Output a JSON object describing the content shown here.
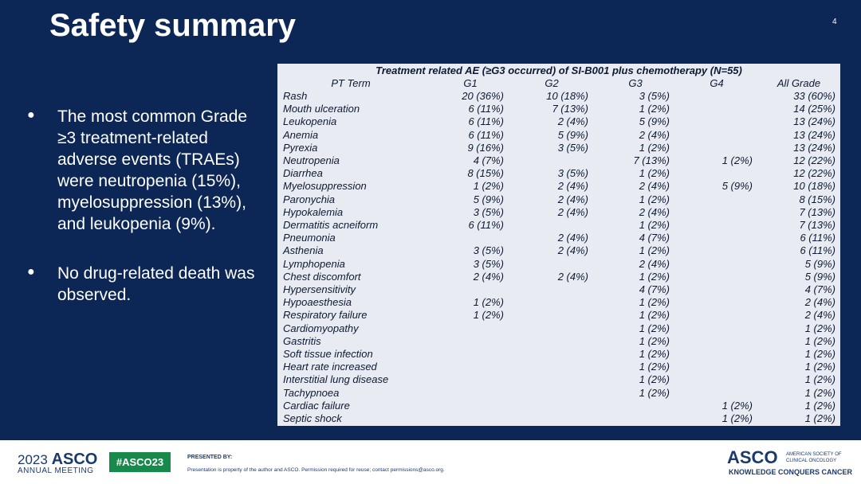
{
  "header": {
    "title": "Safety summary",
    "slide_number": "4"
  },
  "bullets": [
    "The most common Grade ≥3 treatment-related adverse events (TRAEs) were neutropenia (15%), myelosuppression (13%), and leukopenia (9%).",
    "No drug-related death was observed."
  ],
  "table": {
    "caption": "Treatment related AE (≥G3 occurred) of SI-B001 plus chemotherapy  (N=55)",
    "columns": [
      "PT Term",
      "G1",
      "G2",
      "G3",
      "G4",
      "All Grade"
    ],
    "rows": [
      [
        "Rash",
        "20 (36%)",
        "10 (18%)",
        "3 (5%)",
        null,
        "33 (60%)"
      ],
      [
        "Mouth ulceration",
        "6 (11%)",
        "7 (13%)",
        "1 (2%)",
        null,
        "14 (25%)"
      ],
      [
        "Leukopenia",
        "6 (11%)",
        "2 (4%)",
        "5 (9%)",
        null,
        "13 (24%)"
      ],
      [
        "Anemia",
        "6 (11%)",
        "5 (9%)",
        "2 (4%)",
        null,
        "13 (24%)"
      ],
      [
        "Pyrexia",
        "9 (16%)",
        "3 (5%)",
        "1 (2%)",
        null,
        "13 (24%)"
      ],
      [
        "Neutropenia",
        "4 (7%)",
        null,
        "7 (13%)",
        "1 (2%)",
        "12 (22%)"
      ],
      [
        "Diarrhea",
        "8 (15%)",
        "3 (5%)",
        "1 (2%)",
        null,
        "12 (22%)"
      ],
      [
        "Myelosuppression",
        "1 (2%)",
        "2 (4%)",
        "2 (4%)",
        "5 (9%)",
        "10 (18%)"
      ],
      [
        "Paronychia",
        "5 (9%)",
        "2 (4%)",
        "1 (2%)",
        null,
        "8 (15%)"
      ],
      [
        "Hypokalemia",
        "3 (5%)",
        "2 (4%)",
        "2 (4%)",
        null,
        "7 (13%)"
      ],
      [
        "Dermatitis acneiform",
        "6 (11%)",
        null,
        "1 (2%)",
        null,
        "7 (13%)"
      ],
      [
        "Pneumonia",
        null,
        "2 (4%)",
        "4 (7%)",
        null,
        "6 (11%)"
      ],
      [
        "Asthenia",
        "3 (5%)",
        "2 (4%)",
        "1 (2%)",
        null,
        "6 (11%)"
      ],
      [
        "Lymphopenia",
        "3 (5%)",
        null,
        "2 (4%)",
        null,
        "5 (9%)"
      ],
      [
        "Chest discomfort",
        "2 (4%)",
        "2 (4%)",
        "1 (2%)",
        null,
        "5 (9%)"
      ],
      [
        "Hypersensitivity",
        null,
        null,
        "4 (7%)",
        null,
        "4 (7%)"
      ],
      [
        "Hypoaesthesia",
        "1 (2%)",
        null,
        "1 (2%)",
        null,
        "2 (4%)"
      ],
      [
        "Respiratory failure",
        "1 (2%)",
        null,
        "1 (2%)",
        null,
        "2 (4%)"
      ],
      [
        "Cardiomyopathy",
        null,
        null,
        "1 (2%)",
        null,
        "1 (2%)"
      ],
      [
        "Gastritis",
        null,
        null,
        "1 (2%)",
        null,
        "1 (2%)"
      ],
      [
        "Soft tissue infection",
        null,
        null,
        "1 (2%)",
        null,
        "1 (2%)"
      ],
      [
        "Heart rate increased",
        null,
        null,
        "1 (2%)",
        null,
        "1 (2%)"
      ],
      [
        "Interstitial lung disease",
        null,
        null,
        "1 (2%)",
        null,
        "1 (2%)"
      ],
      [
        "Tachypnoea",
        null,
        null,
        "1 (2%)",
        null,
        "1 (2%)"
      ],
      [
        "Cardiac failure",
        null,
        null,
        null,
        "1 (2%)",
        "1 (2%)"
      ],
      [
        "Septic shock",
        null,
        null,
        null,
        "1 (2%)",
        "1 (2%)"
      ]
    ]
  },
  "footer": {
    "year": "2023",
    "meeting_logo": "ASCO",
    "meeting": "ANNUAL MEETING",
    "hashtag": "#ASCO23",
    "presented_by": "PRESENTED BY:",
    "disclaimer": "Presentation is property of the author and ASCO. Permission required for reuse; contact permissions@asco.org.",
    "org_logo": "ASCO",
    "org_line1": "AMERICAN SOCIETY OF",
    "org_line2": "CLINICAL ONCOLOGY",
    "tagline": "KNOWLEDGE CONQUERS CANCER"
  }
}
